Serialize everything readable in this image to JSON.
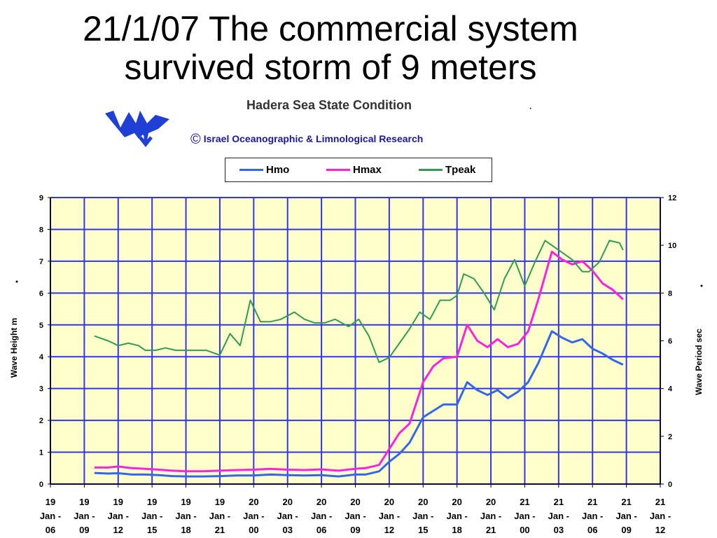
{
  "slide_title_line1": "21/1/07 The commercial system",
  "slide_title_line2": "survived storm of 9 meters",
  "credit_symbol": "©",
  "colors": {
    "hmo": "#3366ee",
    "hmax": "#ff22dd",
    "tpeak": "#339955",
    "plot_bg": "#ffffcc",
    "grid": "#3333ee"
  },
  "icons": [
    "institute-logo-icon",
    "copyright-icon"
  ],
  "chart_data": {
    "type": "line",
    "title": "Hadera Sea State Condition",
    "credit": "Israel Oceanographic & Limnological  Research",
    "legend": [
      "Hmo",
      "Hmax",
      "Tpeak"
    ],
    "ylabel_left": "Wave Height   m",
    "ylabel_right": "Wave Period   sec",
    "ylim_left": [
      0,
      9
    ],
    "ylim_right": [
      0,
      12
    ],
    "yticks_left": [
      "0",
      "1",
      "2",
      "3",
      "4",
      "5",
      "6",
      "7",
      "8",
      "9"
    ],
    "yticks_right": [
      "0",
      "2",
      "4",
      "6",
      "8",
      "10",
      "12"
    ],
    "xlim": [
      0,
      18
    ],
    "xticks": [
      [
        "19",
        "Jan -",
        "06"
      ],
      [
        "19",
        "Jan -",
        "09"
      ],
      [
        "19",
        "Jan -",
        "12"
      ],
      [
        "19",
        "Jan -",
        "15"
      ],
      [
        "19",
        "Jan -",
        "18"
      ],
      [
        "19",
        "Jan -",
        "21"
      ],
      [
        "20",
        "Jan -",
        "00"
      ],
      [
        "20",
        "Jan -",
        "03"
      ],
      [
        "20",
        "Jan -",
        "06"
      ],
      [
        "20",
        "Jan -",
        "09"
      ],
      [
        "20",
        "Jan -",
        "12"
      ],
      [
        "20",
        "Jan -",
        "15"
      ],
      [
        "20",
        "Jan -",
        "18"
      ],
      [
        "20",
        "Jan -",
        "21"
      ],
      [
        "21",
        "Jan -",
        "00"
      ],
      [
        "21",
        "Jan -",
        "03"
      ],
      [
        "21",
        "Jan -",
        "06"
      ],
      [
        "21",
        "Jan -",
        "09"
      ],
      [
        "21",
        "Jan -",
        "12"
      ]
    ],
    "series": [
      {
        "name": "Hmo",
        "axis": "left",
        "x": [
          1.3,
          1.7,
          2.0,
          2.4,
          2.8,
          3.2,
          3.6,
          4.0,
          4.5,
          5.0,
          5.5,
          6.0,
          6.5,
          7.0,
          7.5,
          8.0,
          8.5,
          9.0,
          9.3,
          9.7,
          10.0,
          10.3,
          10.6,
          11.0,
          11.3,
          11.6,
          12.0,
          12.3,
          12.6,
          12.9,
          13.2,
          13.5,
          13.8,
          14.1,
          14.4,
          14.8,
          15.1,
          15.4,
          15.7,
          16.0,
          16.3,
          16.6,
          16.9
        ],
        "y": [
          0.35,
          0.33,
          0.34,
          0.3,
          0.3,
          0.28,
          0.25,
          0.24,
          0.24,
          0.25,
          0.27,
          0.27,
          0.3,
          0.28,
          0.27,
          0.28,
          0.24,
          0.3,
          0.3,
          0.4,
          0.7,
          0.95,
          1.3,
          2.1,
          2.3,
          2.5,
          2.5,
          3.2,
          2.95,
          2.8,
          2.95,
          2.7,
          2.9,
          3.2,
          3.8,
          4.8,
          4.6,
          4.45,
          4.55,
          4.25,
          4.1,
          3.9,
          3.75
        ]
      },
      {
        "name": "Hmax",
        "axis": "left",
        "x": [
          1.3,
          1.7,
          2.0,
          2.4,
          2.8,
          3.2,
          3.6,
          4.0,
          4.5,
          5.0,
          5.5,
          6.0,
          6.5,
          7.0,
          7.5,
          8.0,
          8.5,
          9.0,
          9.3,
          9.7,
          10.0,
          10.3,
          10.6,
          11.0,
          11.3,
          11.6,
          12.0,
          12.3,
          12.6,
          12.9,
          13.2,
          13.5,
          13.8,
          14.1,
          14.4,
          14.8,
          15.1,
          15.4,
          15.7,
          16.0,
          16.3,
          16.6,
          16.9
        ],
        "y": [
          0.52,
          0.52,
          0.55,
          0.5,
          0.48,
          0.45,
          0.42,
          0.4,
          0.4,
          0.42,
          0.44,
          0.45,
          0.48,
          0.45,
          0.44,
          0.46,
          0.42,
          0.48,
          0.5,
          0.6,
          1.1,
          1.6,
          1.9,
          3.2,
          3.7,
          3.95,
          4.0,
          5.0,
          4.5,
          4.3,
          4.55,
          4.3,
          4.4,
          4.8,
          5.8,
          7.3,
          7.05,
          6.9,
          7.0,
          6.7,
          6.3,
          6.1,
          5.8
        ]
      },
      {
        "name": "Tpeak",
        "axis": "right",
        "x": [
          1.3,
          1.7,
          2.0,
          2.3,
          2.6,
          2.8,
          3.1,
          3.4,
          3.7,
          4.0,
          4.3,
          4.6,
          5.0,
          5.3,
          5.6,
          5.9,
          6.2,
          6.5,
          6.8,
          7.2,
          7.5,
          7.8,
          8.1,
          8.4,
          8.8,
          9.1,
          9.4,
          9.7,
          10.0,
          10.3,
          10.6,
          10.9,
          11.2,
          11.5,
          11.8,
          12.0,
          12.2,
          12.5,
          12.8,
          13.1,
          13.4,
          13.7,
          14.0,
          14.3,
          14.6,
          14.8,
          15.1,
          15.4,
          15.7,
          15.9,
          16.2,
          16.5,
          16.8,
          16.9
        ],
        "y": [
          6.2,
          6.0,
          5.8,
          5.9,
          5.8,
          5.6,
          5.6,
          5.7,
          5.6,
          5.6,
          5.6,
          5.6,
          5.4,
          6.3,
          5.8,
          7.7,
          6.8,
          6.8,
          6.9,
          7.2,
          6.9,
          6.75,
          6.75,
          6.9,
          6.6,
          6.9,
          6.2,
          5.1,
          5.3,
          5.9,
          6.5,
          7.2,
          6.9,
          7.7,
          7.7,
          7.9,
          8.8,
          8.6,
          8.0,
          7.3,
          8.6,
          9.4,
          8.3,
          9.3,
          10.2,
          10.0,
          9.7,
          9.4,
          8.9,
          8.9,
          9.3,
          10.2,
          10.1,
          9.8
        ]
      }
    ]
  }
}
